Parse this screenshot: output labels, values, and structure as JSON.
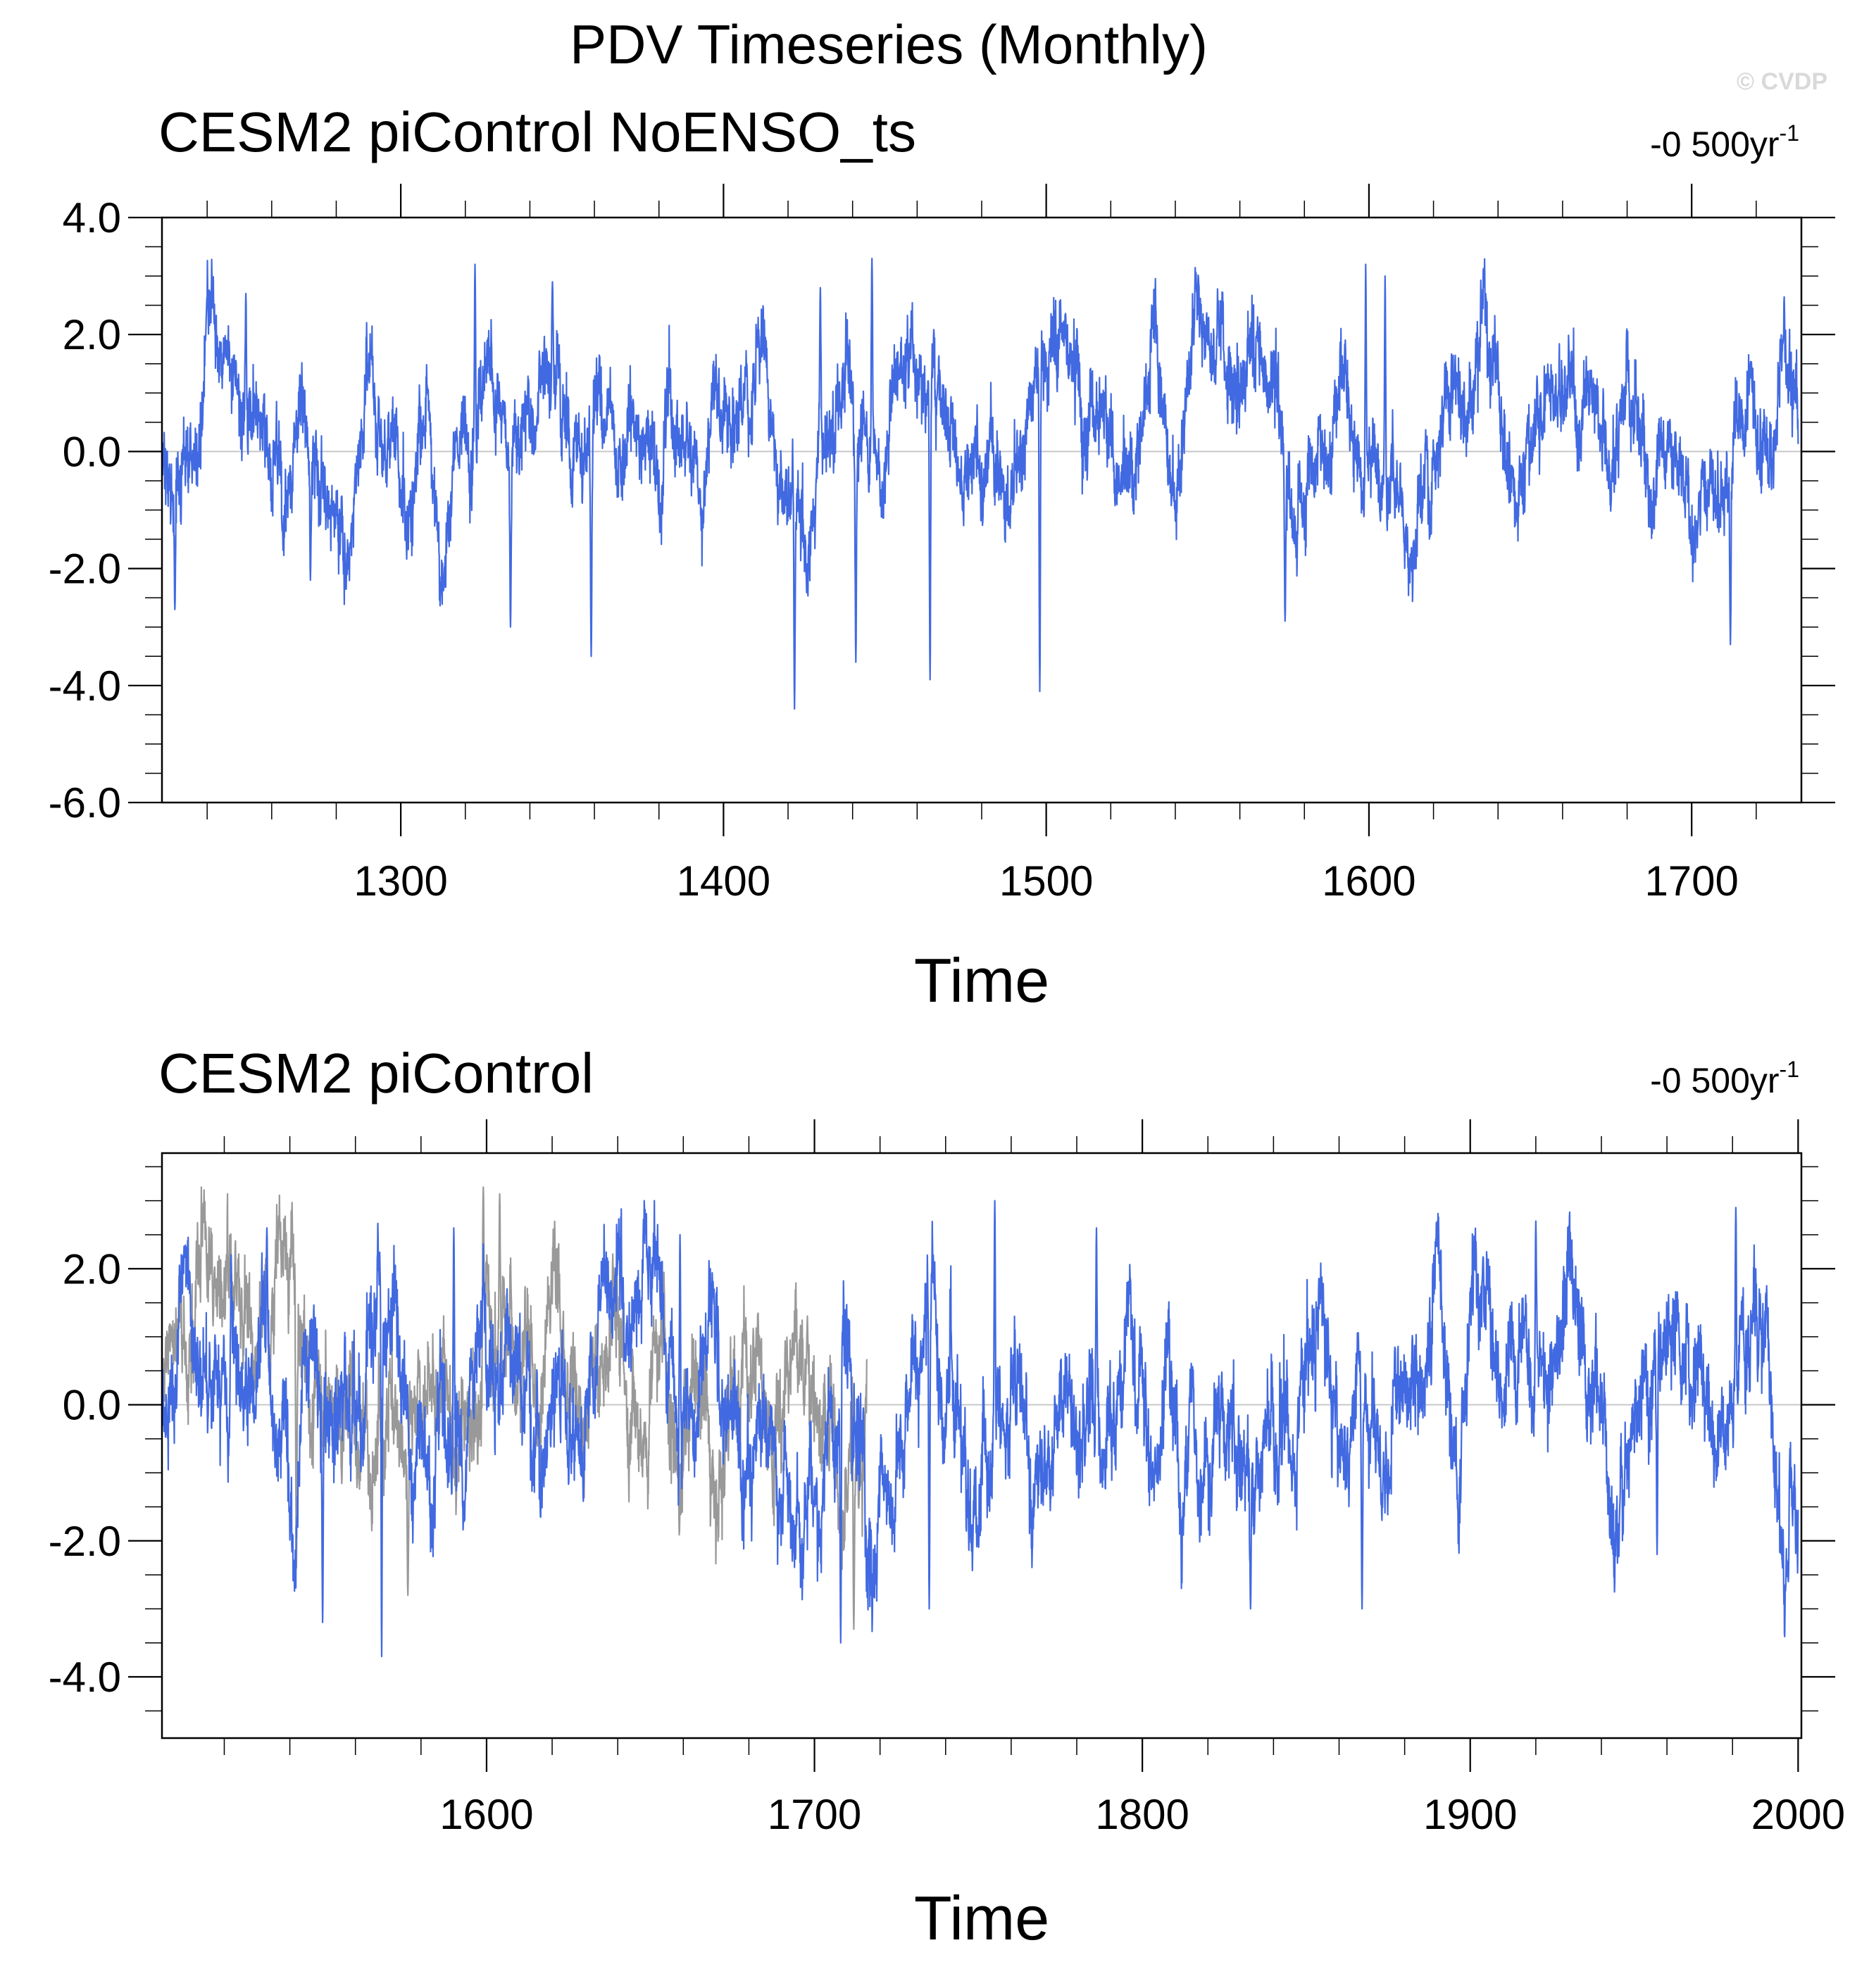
{
  "figure": {
    "title": "PDV Timeseries (Monthly)",
    "copyright": "© CVDP"
  },
  "colors": {
    "series_main": "#4169e1",
    "series_overlay": "#999999",
    "axis": "#000000",
    "zero_line": "#c8c8c8"
  },
  "chart_data": [
    {
      "type": "line",
      "title": "CESM2 piControl NoENSO_ts",
      "trend_label": "-0 500yr",
      "trend_superscript": "-1",
      "xlabel": "Time",
      "ylabel": "",
      "xlim": [
        1226,
        1734
      ],
      "ylim": [
        -6.0,
        4.0
      ],
      "x_ticks": [
        1300,
        1400,
        1500,
        1600,
        1700
      ],
      "x_minor_step": 20,
      "y_ticks": [
        4.0,
        2.0,
        0.0,
        -2.0,
        -4.0,
        -6.0
      ],
      "y_tick_labels": [
        "4.0",
        "2.0",
        "0.0",
        "-2.0",
        "-4.0",
        "-6.0"
      ],
      "y_minor_step": 0.5,
      "grid": false,
      "zero_line": true,
      "series": [
        {
          "color": "#4169e1",
          "x_start": 1226,
          "x_end": 1733,
          "sampling": "monthly",
          "y_range_shown": [
            -4.4,
            3.3
          ],
          "features": [
            {
              "x": 1230,
              "y": -2.7
            },
            {
              "x": 1252,
              "y": 2.7
            },
            {
              "x": 1272,
              "y": -2.2
            },
            {
              "x": 1323,
              "y": 3.2
            },
            {
              "x": 1334,
              "y": -3.0
            },
            {
              "x": 1347,
              "y": 2.9
            },
            {
              "x": 1359,
              "y": -3.5
            },
            {
              "x": 1422,
              "y": -4.4
            },
            {
              "x": 1430,
              "y": 2.8
            },
            {
              "x": 1441,
              "y": -3.6
            },
            {
              "x": 1446,
              "y": 3.3
            },
            {
              "x": 1464,
              "y": -3.9
            },
            {
              "x": 1498,
              "y": -4.1
            },
            {
              "x": 1574,
              "y": -2.9
            },
            {
              "x": 1599,
              "y": 3.2
            },
            {
              "x": 1605,
              "y": 3.0
            },
            {
              "x": 1712,
              "y": -3.3
            }
          ]
        }
      ]
    },
    {
      "type": "line",
      "title": "CESM2 piControl",
      "trend_label": "-0 500yr",
      "trend_superscript": "-1",
      "xlabel": "Time",
      "ylabel": "",
      "xlim": [
        1501,
        2001
      ],
      "ylim": [
        -4.9,
        3.7
      ],
      "x_ticks": [
        1600,
        1700,
        1800,
        1900,
        2000
      ],
      "x_minor_step": 20,
      "y_ticks": [
        2.0,
        0.0,
        -2.0,
        -4.0
      ],
      "y_tick_labels": [
        "2.0",
        "0.0",
        "-2.0",
        "-4.0"
      ],
      "y_minor_step": 0.5,
      "grid": false,
      "zero_line": true,
      "series": [
        {
          "color": "#999999",
          "x_start": 1501,
          "x_end": 1716,
          "sampling": "monthly",
          "y_range_shown": [
            -3.4,
            3.2
          ],
          "features": [
            {
              "x": 1517,
              "y": 2.0
            },
            {
              "x": 1542,
              "y": -2.4
            },
            {
              "x": 1576,
              "y": -2.8
            },
            {
              "x": 1599,
              "y": 3.2
            },
            {
              "x": 1604,
              "y": 3.1
            },
            {
              "x": 1712,
              "y": -3.3
            }
          ]
        },
        {
          "color": "#4169e1",
          "x_start": 1501,
          "x_end": 2000,
          "sampling": "monthly",
          "y_range_shown": [
            -3.7,
            3.0
          ],
          "features": [
            {
              "x": 1533,
              "y": 2.6
            },
            {
              "x": 1550,
              "y": -3.2
            },
            {
              "x": 1568,
              "y": -3.7
            },
            {
              "x": 1590,
              "y": 2.6
            },
            {
              "x": 1659,
              "y": 2.5
            },
            {
              "x": 1708,
              "y": -3.5
            },
            {
              "x": 1735,
              "y": -3.0
            },
            {
              "x": 1755,
              "y": 3.0
            },
            {
              "x": 1786,
              "y": 2.6
            },
            {
              "x": 1833,
              "y": -3.0
            },
            {
              "x": 1867,
              "y": -3.0
            },
            {
              "x": 1920,
              "y": 2.7
            },
            {
              "x": 1957,
              "y": -2.2
            },
            {
              "x": 1981,
              "y": 2.9
            },
            {
              "x": 1997,
              "y": -2.6
            }
          ]
        }
      ]
    }
  ]
}
